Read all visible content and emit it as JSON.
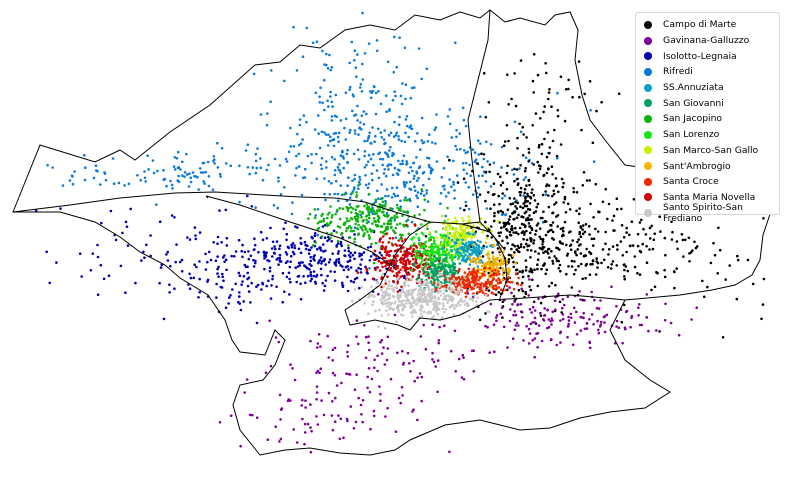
{
  "map": {
    "legend": [
      {
        "label": "Campo di Marte",
        "color": "#000000"
      },
      {
        "label": "Gavinana-Galluzzo",
        "color": "#7f0099"
      },
      {
        "label": "Isolotto-Legnaia",
        "color": "#0000b3"
      },
      {
        "label": "Rifredi",
        "color": "#0a78dc"
      },
      {
        "label": "SS.Annuziata",
        "color": "#0aa0c8"
      },
      {
        "label": "San Giovanni",
        "color": "#00a060"
      },
      {
        "label": "San Jacopino",
        "color": "#0ab40a"
      },
      {
        "label": "San Lorenzo",
        "color": "#14e614"
      },
      {
        "label": "San Marco-San Gallo",
        "color": "#c8f000"
      },
      {
        "label": "Sant'Ambrogio",
        "color": "#f5b400"
      },
      {
        "label": "Santa Croce",
        "color": "#f02800"
      },
      {
        "label": "Santa Maria Novella",
        "color": "#d20000"
      },
      {
        "label": "Santo Spirito-San Frediano",
        "color": "#c8c8c8"
      }
    ]
  }
}
